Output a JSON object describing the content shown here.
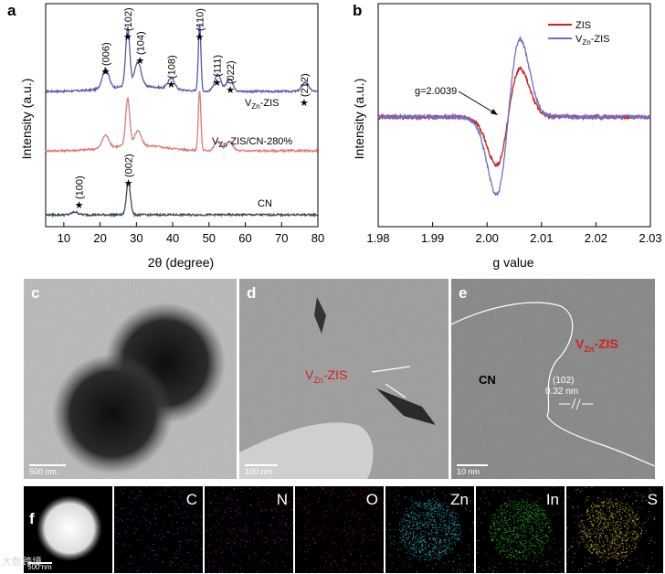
{
  "panels": {
    "a": {
      "letter": "a",
      "chart_data": {
        "type": "line",
        "xlabel": "2θ (degree)",
        "ylabel": "Intensity (a.u.)",
        "xlim": [
          5,
          80
        ],
        "xticks": [
          10,
          20,
          30,
          40,
          50,
          60,
          70,
          80
        ],
        "series": [
          {
            "name": "VZn-ZIS",
            "label_main": "V",
            "label_sub": "Zn",
            "label_tail": "-ZIS",
            "color": "#5a58a8",
            "peaks": [
              [
                21.5,
                22
              ],
              [
                27.6,
                64
              ],
              [
                30.4,
                26
              ],
              [
                39.6,
                12
              ],
              [
                47.4,
                74
              ],
              [
                52.4,
                18
              ],
              [
                55.7,
                14
              ],
              [
                76.5,
                10
              ]
            ]
          },
          {
            "name": "VZn-ZIS/CN-280%",
            "label_main": "V",
            "label_sub": "Zn",
            "label_tail": "-ZIS/CN-280%",
            "color": "#e07878",
            "peaks": [
              [
                21.5,
                14
              ],
              [
                27.6,
                52
              ],
              [
                30.4,
                16
              ],
              [
                47.4,
                66
              ],
              [
                52.4,
                10
              ],
              [
                55.7,
                10
              ]
            ]
          },
          {
            "name": "CN",
            "label_main": "CN",
            "label_sub": "",
            "label_tail": "",
            "color": "#3a4a5a",
            "peaks": [
              [
                13.1,
                3
              ],
              [
                27.8,
                36
              ]
            ]
          }
        ],
        "annotations": [
          {
            "text": "(006)",
            "x": 21.5
          },
          {
            "text": "(102)",
            "x": 27.6
          },
          {
            "text": "(104)",
            "x": 31.0
          },
          {
            "text": "(108)",
            "x": 39.6
          },
          {
            "text": "(110)",
            "x": 47.4
          },
          {
            "text": "(111)",
            "x": 52.2
          },
          {
            "text": "(022)",
            "x": 55.9
          },
          {
            "text": "(212)",
            "x": 76.2
          },
          {
            "text": "(100)",
            "x": 14.2
          },
          {
            "text": "(002)",
            "x": 27.8
          }
        ]
      }
    },
    "b": {
      "letter": "b",
      "chart_data": {
        "type": "line",
        "xlabel": "g value",
        "ylabel": "Intensity (a.u.)",
        "xlim": [
          1.98,
          2.03
        ],
        "xticks": [
          1.98,
          1.99,
          2.0,
          2.01,
          2.02,
          2.03
        ],
        "legend_position": "top-right",
        "series": [
          {
            "name": "ZIS",
            "label_main": "ZIS",
            "label_sub": "",
            "label_tail": "",
            "color": "#cc2222",
            "amplitude": 0.62
          },
          {
            "name": "VZn-ZIS",
            "label_main": "V",
            "label_sub": "Zn",
            "label_tail": "-ZIS",
            "color": "#6f6fc8",
            "amplitude": 1.0
          }
        ],
        "annotation": "g=2.0039",
        "g_center": 2.0039
      }
    },
    "c": {
      "letter": "c",
      "scalebar": "500 nm"
    },
    "d": {
      "letter": "d",
      "scalebar": "100 nm",
      "label_main": "V",
      "label_sub": "Zn",
      "label_tail": "-ZIS"
    },
    "e": {
      "letter": "e",
      "scalebar": "10 nm",
      "region_cn": "CN",
      "label_main": "V",
      "label_sub": "Zn",
      "label_tail": "-ZIS",
      "plane": "(102)",
      "spacing": "0.32 nm"
    },
    "f": {
      "letter": "f",
      "scalebar": "500 nm",
      "maps": [
        {
          "element": "C",
          "color": "#1f6fd0"
        },
        {
          "element": "N",
          "color": "#c020c0"
        },
        {
          "element": "O",
          "color": "#d02020"
        },
        {
          "element": "Zn",
          "color": "#20c0d0"
        },
        {
          "element": "In",
          "color": "#20c020"
        },
        {
          "element": "S",
          "color": "#d0c020"
        }
      ]
    }
  },
  "watermark": "大数跨境"
}
